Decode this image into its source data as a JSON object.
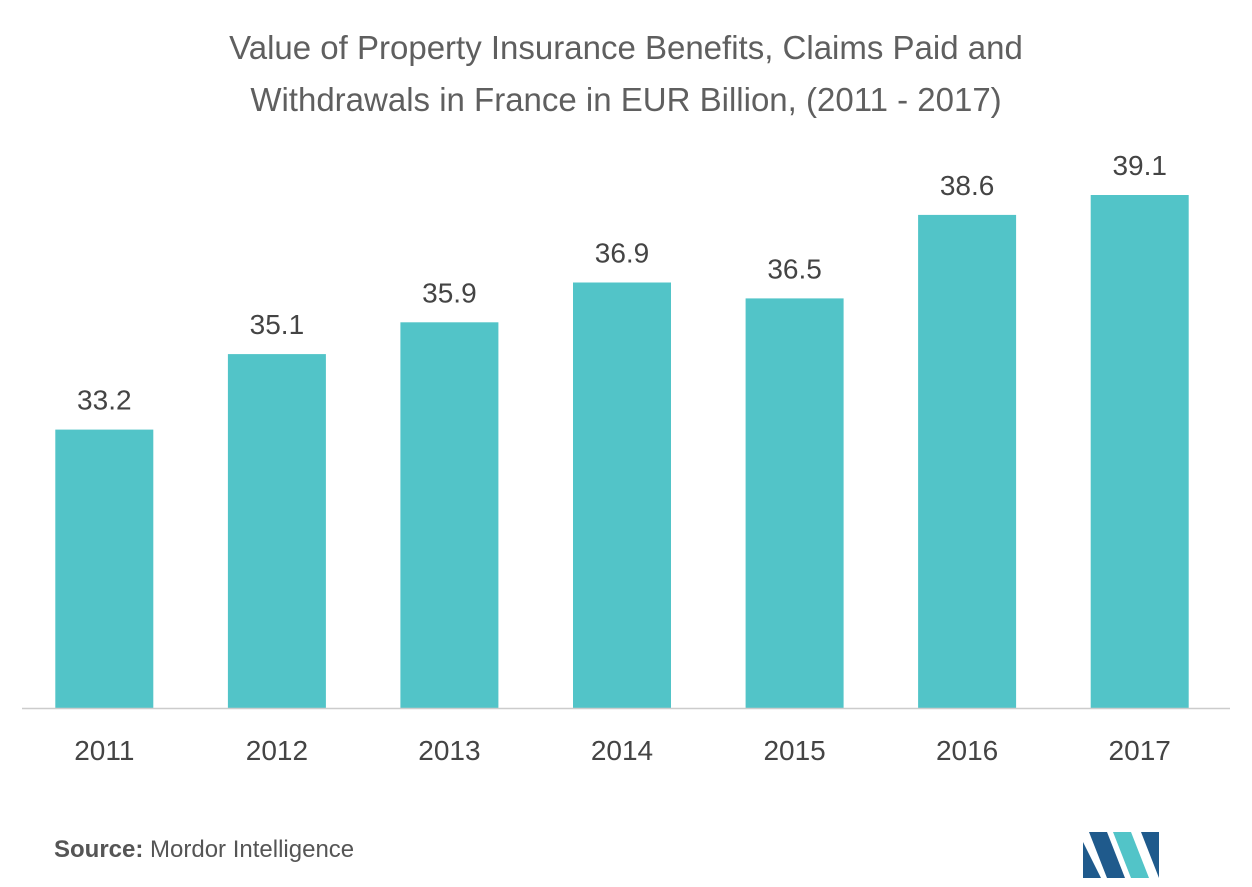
{
  "header": {
    "title_line1": "Value of Property Insurance Benefits, Claims Paid and",
    "title_line2": "Withdrawals in France in EUR Billion, (2011 - 2017)"
  },
  "footer": {
    "source_label": "Source:",
    "source_value": "Mordor Intelligence"
  },
  "colors": {
    "bar": "#52C4C8",
    "axis": "#cccccc",
    "label": "#444444",
    "logo_dark": "#1f5a8c",
    "logo_light": "#52C4C8"
  },
  "chart_data": {
    "type": "bar",
    "title": "Value of Property Insurance Benefits, Claims Paid and Withdrawals in France in EUR Billion, (2011 - 2017)",
    "categories": [
      "2011",
      "2012",
      "2013",
      "2014",
      "2015",
      "2016",
      "2017"
    ],
    "values": [
      33.2,
      35.1,
      35.9,
      36.9,
      36.5,
      38.6,
      39.1
    ],
    "value_labels": [
      "33.2",
      "35.1",
      "35.9",
      "36.9",
      "36.5",
      "38.6",
      "39.1"
    ],
    "xlabel": "",
    "ylabel": "",
    "ylim": [
      30,
      40
    ],
    "grid": false,
    "legend": "none"
  }
}
